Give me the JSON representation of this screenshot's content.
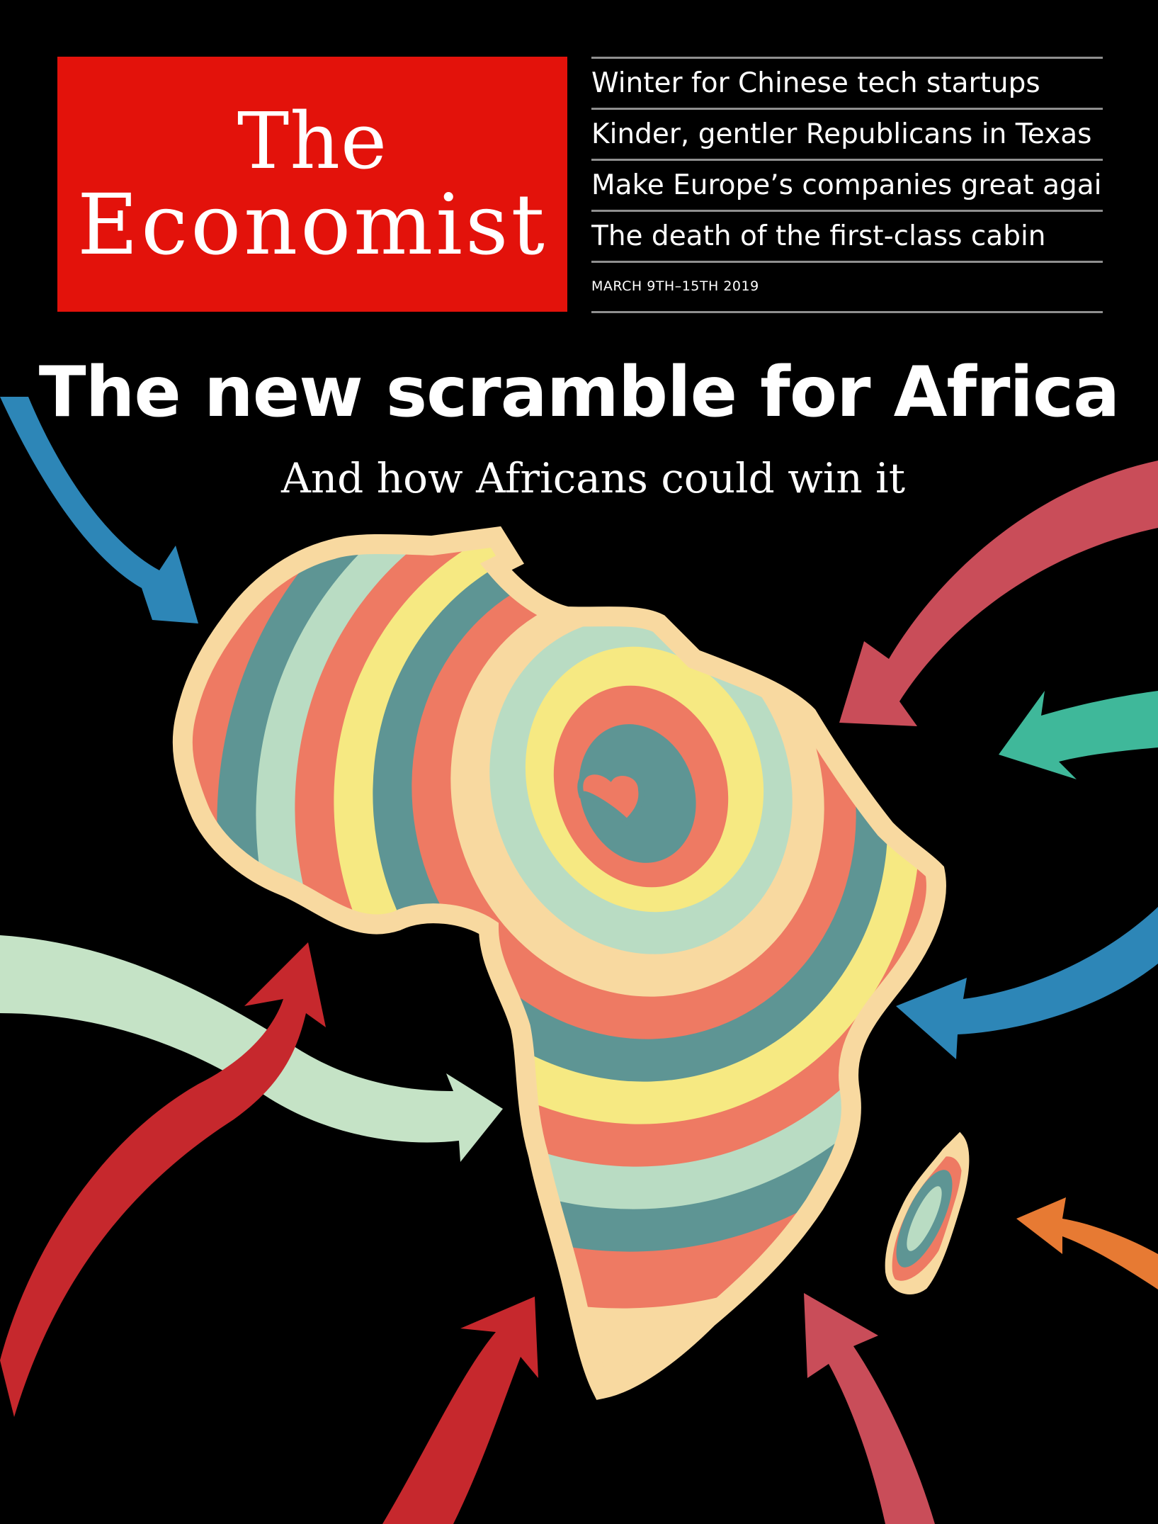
{
  "masthead": {
    "logo_line_1": "The",
    "logo_line_2": "Economist",
    "brand_color": "#e3120b"
  },
  "headlines": [
    "Winter for Chinese tech startups",
    "Kinder, gentler Republicans in Texas",
    "Make Europe’s companies great again",
    "The death of the first-class cabin"
  ],
  "issue_date": "MARCH 9TH–15TH 2019",
  "main_headline": "The new scramble for Africa",
  "sub_headline": "And how Africans could win it",
  "illustration": {
    "subject": "africa-map-icon",
    "layer_colors": [
      "#f8d9a0",
      "#ee7a63",
      "#5e9594",
      "#b9dcc3",
      "#f6e982"
    ],
    "arrow_colors": {
      "blue": "#2d86b7",
      "crimson": "#c94d59",
      "teal": "#3fb89a",
      "mint": "#c5e3c6",
      "red": "#c6282d",
      "orange": "#e77a33"
    }
  }
}
